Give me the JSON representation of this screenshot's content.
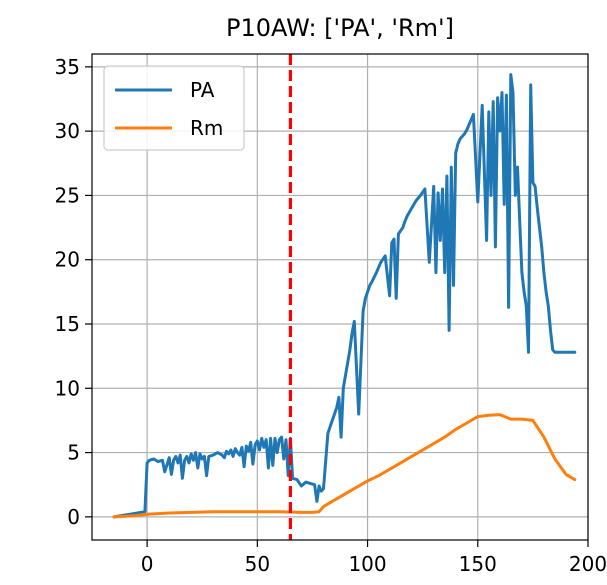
{
  "chart_data": {
    "type": "line",
    "title": "P10AW: ['PA', 'Rm']",
    "xlabel": "",
    "ylabel": "",
    "xlim": [
      -25,
      200
    ],
    "ylim": [
      -1.8,
      36
    ],
    "xticks": [
      0,
      50,
      100,
      150,
      200
    ],
    "yticks": [
      0,
      5,
      10,
      15,
      20,
      25,
      30,
      35
    ],
    "grid": true,
    "legend_position": "top-left",
    "vline": {
      "x": 65,
      "color": "#ff0000",
      "style": "dashed"
    },
    "series": [
      {
        "name": "PA",
        "color": "#1f77b4",
        "x": [
          -15,
          -1,
          0,
          1,
          3,
          5,
          7,
          8,
          10,
          11,
          12,
          13,
          14,
          15,
          16,
          17,
          18,
          19,
          20,
          21,
          22,
          23,
          24,
          25,
          26,
          27,
          28,
          30,
          32,
          34,
          35,
          36,
          37,
          38,
          39,
          40,
          41,
          42,
          43,
          44,
          45,
          46,
          47,
          48,
          49,
          50,
          51,
          52,
          53,
          54,
          55,
          56,
          57,
          58,
          59,
          60,
          61,
          62,
          63,
          64,
          65,
          66,
          68,
          70,
          72,
          74,
          76,
          77,
          78,
          79,
          80,
          82,
          84,
          86,
          87,
          88,
          89,
          90,
          91,
          92,
          93,
          94,
          96,
          98,
          99,
          100,
          101,
          102,
          104,
          106,
          108,
          110,
          111,
          112,
          113,
          114,
          116,
          117,
          118,
          120,
          122,
          124,
          126,
          128,
          130,
          131,
          132,
          133,
          134,
          135,
          136,
          137,
          138,
          139,
          140,
          141,
          142,
          143,
          144,
          145,
          146,
          147,
          148,
          150,
          152,
          154,
          155,
          156,
          157,
          158,
          159,
          160,
          161,
          162,
          163,
          164,
          165,
          166,
          167,
          168,
          169,
          170,
          171,
          172,
          173,
          174,
          175,
          176,
          177,
          178,
          179,
          180,
          181,
          182,
          183,
          184,
          185,
          186,
          187,
          188,
          190,
          192,
          193,
          194
        ],
        "values": [
          0.0,
          0.4,
          4.2,
          4.4,
          4.5,
          4.3,
          4.4,
          3.5,
          4.6,
          3.3,
          4.4,
          4.7,
          4.2,
          4.8,
          3.0,
          4.4,
          4.7,
          4.2,
          4.9,
          4.4,
          5.0,
          3.8,
          4.9,
          4.5,
          4.7,
          3.2,
          4.7,
          4.8,
          5.0,
          4.8,
          4.6,
          5.1,
          4.9,
          5.2,
          4.7,
          5.3,
          5.0,
          4.8,
          5.4,
          3.9,
          5.5,
          5.1,
          5.8,
          4.1,
          5.6,
          5.9,
          5.2,
          6.1,
          5.4,
          6.0,
          3.8,
          6.1,
          4.0,
          6.1,
          5.0,
          6.0,
          6.2,
          4.5,
          6.0,
          3.2,
          6.1,
          3.0,
          2.9,
          2.4,
          2.7,
          2.6,
          2.5,
          1.2,
          2.4,
          2.0,
          2.2,
          6.5,
          7.5,
          8.5,
          9.3,
          6.2,
          10.0,
          11.0,
          12.0,
          13.0,
          14.3,
          15.2,
          8.0,
          16.0,
          17.0,
          17.5,
          18.0,
          18.3,
          19.0,
          19.8,
          20.3,
          17.2,
          21.3,
          21.6,
          17.0,
          22.0,
          22.5,
          23.0,
          23.4,
          24.0,
          24.6,
          25.0,
          25.5,
          19.8,
          25.7,
          19.0,
          25.2,
          21.5,
          25.5,
          19.0,
          26.5,
          14.5,
          27.2,
          18.0,
          28.3,
          29.0,
          29.4,
          29.6,
          29.8,
          30.1,
          30.5,
          30.9,
          31.3,
          24.5,
          32.0,
          21.5,
          31.5,
          25.0,
          32.3,
          21.0,
          32.6,
          30.0,
          33.0,
          24.3,
          32.8,
          16.3,
          34.4,
          33.0,
          25.0,
          27.2,
          23.0,
          19.0,
          17.5,
          16.4,
          12.8,
          33.6,
          26.0,
          25.7,
          24.0,
          22.5,
          21.0,
          19.0,
          17.5,
          16.4,
          14.5,
          13.0,
          12.8,
          12.8,
          12.8,
          12.8,
          12.8,
          12.8,
          12.8,
          12.8
        ]
      },
      {
        "name": "Rm",
        "color": "#ff7f0e",
        "x": [
          -15,
          -5,
          0,
          10,
          20,
          30,
          40,
          50,
          60,
          70,
          75,
          78,
          80,
          85,
          90,
          95,
          100,
          105,
          110,
          115,
          120,
          125,
          130,
          135,
          140,
          145,
          150,
          155,
          160,
          165,
          170,
          175,
          180,
          185,
          190,
          194
        ],
        "values": [
          0.0,
          0.1,
          0.2,
          0.3,
          0.35,
          0.4,
          0.4,
          0.4,
          0.4,
          0.35,
          0.35,
          0.4,
          0.8,
          1.3,
          1.8,
          2.3,
          2.8,
          3.2,
          3.7,
          4.2,
          4.7,
          5.2,
          5.7,
          6.2,
          6.8,
          7.3,
          7.8,
          7.9,
          7.95,
          7.6,
          7.6,
          7.5,
          6.2,
          4.5,
          3.3,
          2.9
        ]
      }
    ]
  }
}
